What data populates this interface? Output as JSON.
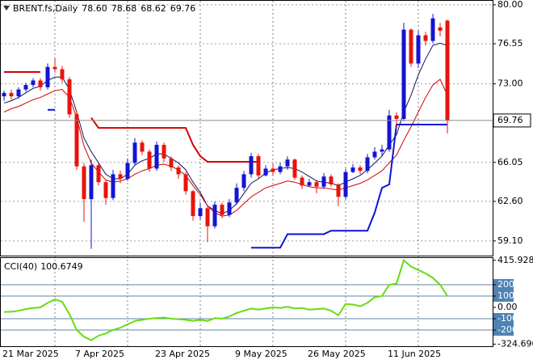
{
  "chart_data": [
    {
      "type": "candlestick",
      "title": "BRENT.fs,Daily",
      "ohlc_labels": [
        "78.60",
        "78.68",
        "68.62",
        "69.76"
      ],
      "categories": [
        "21 Mar 2025",
        null,
        null,
        null,
        null,
        null,
        null,
        null,
        null,
        null,
        "7 Apr 2025",
        null,
        null,
        null,
        null,
        null,
        null,
        null,
        null,
        null,
        null,
        "23 Apr 2025",
        null,
        null,
        null,
        null,
        null,
        null,
        null,
        null,
        null,
        null,
        "9 May 2025",
        null,
        null,
        null,
        null,
        null,
        null,
        null,
        null,
        null,
        "26 May 2025",
        null,
        null,
        null,
        null,
        null,
        null,
        null,
        null,
        null,
        null,
        "11 Jun 2025",
        null,
        null,
        null,
        null,
        null,
        null,
        null,
        null
      ],
      "open": [
        71.9,
        72.2,
        71.9,
        72.5,
        72.9,
        73.3,
        72.7,
        74.5,
        74.3,
        73.4,
        70.3,
        65.7,
        62.8,
        65.8,
        64.3,
        62.9,
        65.0,
        64.6,
        66.0,
        67.8,
        67.0,
        65.5,
        67.6,
        66.4,
        65.6,
        65.0,
        63.5,
        61.3,
        62.0,
        60.4,
        62.3,
        61.4,
        62.5,
        63.8,
        65.0,
        66.6,
        64.9,
        65.5,
        65.2,
        65.7,
        66.3,
        64.7,
        64.0,
        64.3,
        63.9,
        64.8,
        64.1,
        63.0,
        65.2,
        65.6,
        65.3,
        66.5,
        67.0,
        67.2,
        70.2,
        69.9,
        77.8,
        74.8,
        77.3,
        76.8,
        78.0,
        78.6
      ],
      "high": [
        72.4,
        72.5,
        72.7,
        73.1,
        73.5,
        73.5,
        74.8,
        75.3,
        74.6,
        73.6,
        70.6,
        66.0,
        66.3,
        66.0,
        64.5,
        65.4,
        65.3,
        66.4,
        68.2,
        68.0,
        67.2,
        67.9,
        67.8,
        66.6,
        65.8,
        65.2,
        63.6,
        62.5,
        62.2,
        62.6,
        62.5,
        62.8,
        64.2,
        65.3,
        66.9,
        66.8,
        65.8,
        65.9,
        66.0,
        66.6,
        66.4,
        64.9,
        64.6,
        64.5,
        65.1,
        65.0,
        64.2,
        65.5,
        65.9,
        65.8,
        66.8,
        67.4,
        67.6,
        70.7,
        70.5,
        78.4,
        77.9,
        77.7,
        77.6,
        79.2,
        78.4,
        78.68
      ],
      "low": [
        71.5,
        71.6,
        71.7,
        72.3,
        72.7,
        72.4,
        72.5,
        74.0,
        73.1,
        70.0,
        65.4,
        60.8,
        58.4,
        64.0,
        62.3,
        62.7,
        64.2,
        64.4,
        65.8,
        66.7,
        65.2,
        65.3,
        66.1,
        65.3,
        64.6,
        63.2,
        60.9,
        61.0,
        59.0,
        60.2,
        61.1,
        61.2,
        62.3,
        63.5,
        64.7,
        64.6,
        64.8,
        64.9,
        65.0,
        65.4,
        64.5,
        63.7,
        63.9,
        63.3,
        63.7,
        63.9,
        62.2,
        62.8,
        65.1,
        65.0,
        65.1,
        66.3,
        66.6,
        67.0,
        69.0,
        69.7,
        74.5,
        74.4,
        76.4,
        76.6,
        77.2,
        68.62
      ],
      "close": [
        72.2,
        71.9,
        72.5,
        72.9,
        73.3,
        72.7,
        74.5,
        74.3,
        73.4,
        70.3,
        65.7,
        62.8,
        65.8,
        64.3,
        62.9,
        65.0,
        64.6,
        66.0,
        67.8,
        67.0,
        65.5,
        67.6,
        66.4,
        65.6,
        65.0,
        63.5,
        61.3,
        62.0,
        60.4,
        62.3,
        61.4,
        62.5,
        63.8,
        65.0,
        66.6,
        64.9,
        65.5,
        65.2,
        65.7,
        66.3,
        64.7,
        64.0,
        64.3,
        63.9,
        64.8,
        64.1,
        63.0,
        65.2,
        65.6,
        65.3,
        66.5,
        67.0,
        67.2,
        70.2,
        69.9,
        77.8,
        74.8,
        77.3,
        76.8,
        78.8,
        77.7,
        69.76
      ],
      "up_color": "#1414d2",
      "down_color": "#e8140c",
      "overlays": [
        {
          "color": "#0c1660",
          "width": 1,
          "values": [
            71.3,
            71.5,
            71.8,
            72.2,
            72.6,
            72.8,
            73.3,
            73.6,
            73.6,
            72.5,
            70.5,
            68.2,
            67.0,
            66.0,
            65.0,
            64.6,
            64.6,
            65.0,
            65.8,
            66.2,
            66.4,
            66.8,
            66.8,
            66.4,
            66.0,
            65.4,
            64.3,
            63.4,
            62.2,
            61.8,
            61.5,
            61.8,
            62.4,
            63.3,
            64.2,
            64.6,
            65.1,
            65.4,
            65.5,
            65.6,
            65.5,
            65.2,
            64.8,
            64.4,
            64.3,
            64.2,
            64.0,
            64.3,
            64.6,
            64.9,
            65.4,
            66.0,
            66.6,
            67.6,
            68.5,
            70.5,
            72.0,
            73.8,
            75.2,
            76.4,
            76.6,
            76.4
          ]
        },
        {
          "color": "#d40000",
          "width": 1,
          "values": [
            70.5,
            70.8,
            71.0,
            71.3,
            71.6,
            71.8,
            72.1,
            72.4,
            72.5,
            71.8,
            70.0,
            67.5,
            66.0,
            65.2,
            64.5,
            64.3,
            64.4,
            64.6,
            65.0,
            65.3,
            65.5,
            65.8,
            65.9,
            65.7,
            65.4,
            64.9,
            64.0,
            63.2,
            62.2,
            61.6,
            61.3,
            61.4,
            61.8,
            62.4,
            63.0,
            63.4,
            63.8,
            64.0,
            64.2,
            64.4,
            64.3,
            64.1,
            63.9,
            63.8,
            63.8,
            63.7,
            63.6,
            63.8,
            64.0,
            64.2,
            64.5,
            64.9,
            65.3,
            66.0,
            66.7,
            68.0,
            69.2,
            70.5,
            71.8,
            72.9,
            73.4,
            72.0
          ]
        },
        {
          "color": "#d40000",
          "width": 2,
          "values": [
            74.05,
            74.05,
            74.05,
            74.05,
            74.05,
            74.05,
            null,
            null,
            null,
            null,
            null,
            null,
            70.0,
            69.1,
            69.1,
            69.1,
            69.1,
            69.1,
            69.1,
            69.1,
            69.1,
            69.1,
            69.1,
            69.1,
            69.1,
            69.1,
            67.6,
            66.6,
            66.1,
            66.1,
            66.1,
            66.1,
            66.1,
            66.1,
            66.1,
            66.1,
            null,
            null,
            null,
            null,
            null,
            null,
            null,
            null,
            null,
            null,
            null,
            null,
            null,
            null,
            null,
            null,
            null,
            null,
            null,
            null,
            null,
            null,
            null,
            null,
            null,
            null
          ]
        },
        {
          "color": "#0a14d8",
          "width": 2,
          "values": [
            null,
            null,
            null,
            null,
            null,
            null,
            70.7,
            70.7,
            null,
            null,
            null,
            null,
            null,
            null,
            null,
            null,
            null,
            null,
            null,
            null,
            null,
            null,
            null,
            null,
            null,
            null,
            null,
            null,
            null,
            null,
            null,
            null,
            null,
            null,
            58.5,
            58.5,
            58.5,
            58.5,
            58.5,
            59.7,
            59.7,
            59.7,
            59.7,
            59.7,
            59.7,
            60.0,
            60.0,
            60.0,
            60.0,
            60.0,
            60.0,
            61.6,
            63.8,
            64.1,
            69.4,
            69.4,
            69.4,
            69.4,
            69.4,
            69.4,
            69.4,
            69.4
          ]
        }
      ],
      "current_price": 69.76,
      "ylim": [
        57.8,
        80.35
      ],
      "yticks": [
        {
          "value": 80,
          "label": "80.00"
        },
        76.55,
        {
          "value": 73,
          "label": "73.00"
        },
        66.05,
        {
          "value": 62.6,
          "label": "62.60"
        },
        {
          "value": 59.1,
          "label": "59.10"
        }
      ],
      "grid": true
    },
    {
      "type": "line",
      "title": "CCI(40)",
      "color": "#66dd11",
      "values": [
        -40,
        -38,
        -30,
        -15,
        -5,
        0,
        40,
        70,
        50,
        -60,
        -200,
        -260,
        -290,
        -250,
        -230,
        -200,
        -180,
        -150,
        -120,
        -110,
        -100,
        -95,
        -90,
        -100,
        -105,
        -110,
        -120,
        -110,
        -120,
        -95,
        -100,
        -80,
        -50,
        -30,
        -10,
        -20,
        -10,
        0,
        -5,
        5,
        -10,
        -5,
        -20,
        -15,
        -10,
        -30,
        -70,
        30,
        25,
        10,
        40,
        90,
        100,
        200,
        210,
        415.928,
        360,
        330,
        300,
        260,
        200,
        100.6749
      ],
      "levels": [
        200,
        100,
        -100,
        -200
      ],
      "level_color": "#5f86a6",
      "ylim": [
        -343,
        443
      ],
      "yticks": [
        415.928,
        200,
        100,
        {
          "value": 0,
          "label": "0.00"
        },
        {
          "value": -100,
          "label": "-100"
        },
        {
          "value": -200,
          "label": "-200"
        },
        {
          "value": -324.69,
          "label": "-324.690"
        }
      ]
    }
  ]
}
